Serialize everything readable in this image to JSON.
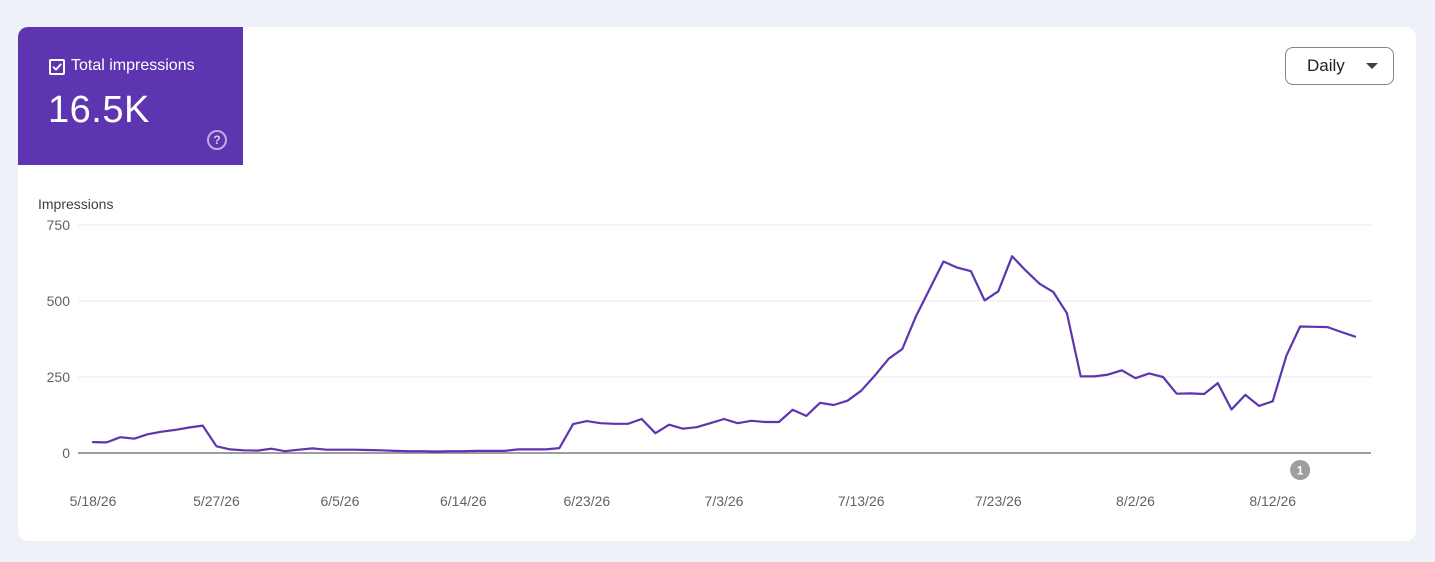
{
  "metric": {
    "label": "Total impressions",
    "value": "16.5K",
    "checked": true,
    "help_icon": "help-circle-icon",
    "color": "#5e35b1"
  },
  "period": {
    "selected": "Daily",
    "icon": "caret-down-icon"
  },
  "chart_data": {
    "type": "line",
    "ylabel": "Impressions",
    "ylim": [
      0,
      750
    ],
    "yticks": [
      0,
      250,
      500,
      750
    ],
    "x_start_date": "2026-05-18",
    "xtick_labels": [
      "5/18/26",
      "5/27/26",
      "6/5/26",
      "6/14/26",
      "6/23/26",
      "7/3/26",
      "7/13/26",
      "7/23/26",
      "8/2/26",
      "8/12/26"
    ],
    "xtick_dates": [
      "2026-05-18",
      "2026-05-27",
      "2026-06-05",
      "2026-06-14",
      "2026-06-23",
      "2026-07-03",
      "2026-07-13",
      "2026-07-23",
      "2026-08-02",
      "2026-08-12"
    ],
    "grid": true,
    "series": [
      {
        "color": "#5e35b1",
        "values": [
          36,
          35,
          52,
          47,
          62,
          70,
          76,
          84,
          90,
          22,
          12,
          9,
          8,
          14,
          6,
          11,
          15,
          11,
          11,
          11,
          10,
          9,
          7,
          6,
          6,
          5,
          6,
          6,
          7,
          7,
          7,
          12,
          12,
          12,
          16,
          95,
          105,
          98,
          96,
          96,
          112,
          65,
          93,
          80,
          85,
          98,
          112,
          98,
          106,
          102,
          102,
          142,
          122,
          165,
          158,
          172,
          205,
          255,
          310,
          342,
          450,
          540,
          630,
          610,
          598,
          502,
          532,
          647,
          600,
          557,
          530,
          460,
          252,
          252,
          258,
          272,
          246,
          262,
          250,
          195,
          196,
          194,
          230,
          143,
          191,
          155,
          170,
          320,
          416,
          415,
          414,
          398,
          383
        ]
      }
    ],
    "annotations": [
      {
        "label": "1",
        "date": "2026-08-14"
      }
    ]
  }
}
